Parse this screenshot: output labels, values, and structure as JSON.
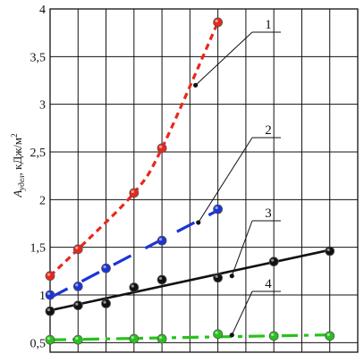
{
  "chart_data": {
    "type": "line",
    "title": "",
    "xlabel": "",
    "ylabel": "A_удел, кДж/м²",
    "ylabel_parts": {
      "base": "A",
      "subscript": "удел",
      "unit": ", кДж/м",
      "superscript": "2"
    },
    "ylim": [
      0.4,
      4.0
    ],
    "xlim": [
      0,
      11
    ],
    "y_ticks": [
      "0,5",
      "1",
      "1,5",
      "2",
      "2,5",
      "3",
      "3,5",
      "4"
    ],
    "y_tick_values": [
      0.5,
      1.0,
      1.5,
      2.0,
      2.5,
      3.0,
      3.5,
      4.0
    ],
    "x_ticks": [],
    "grid": true,
    "series": [
      {
        "name": "1",
        "color": "#e8281e",
        "line_style": "dashed-curve",
        "x": [
          0,
          1,
          3,
          4,
          6
        ],
        "y": [
          1.2,
          1.48,
          2.07,
          2.54,
          3.86
        ]
      },
      {
        "name": "2",
        "color": "#1c33d6",
        "line_style": "long-dash",
        "x": [
          0,
          1,
          2,
          4,
          6
        ],
        "y": [
          1.0,
          1.09,
          1.28,
          1.57,
          1.9
        ]
      },
      {
        "name": "3",
        "color": "#111111",
        "line_style": "solid",
        "x": [
          0,
          1,
          2,
          3,
          4,
          6,
          8,
          10
        ],
        "y": [
          0.83,
          0.89,
          0.91,
          1.08,
          1.16,
          1.18,
          1.35,
          1.46
        ]
      },
      {
        "name": "4",
        "color": "#27c21b",
        "line_style": "dash-dot",
        "x": [
          0,
          1,
          3,
          4,
          6,
          8,
          10
        ],
        "y": [
          0.53,
          0.53,
          0.54,
          0.54,
          0.59,
          0.57,
          0.57
        ]
      }
    ],
    "annotations": [
      {
        "label": "1",
        "series": "1",
        "target_x": 5.2,
        "target_y": 3.2
      },
      {
        "label": "2",
        "series": "2",
        "target_x": 5.3,
        "target_y": 1.76
      },
      {
        "label": "3",
        "series": "3",
        "target_x": 6.5,
        "target_y": 1.2
      },
      {
        "label": "4",
        "series": "4",
        "target_x": 6.5,
        "target_y": 0.58
      }
    ]
  }
}
